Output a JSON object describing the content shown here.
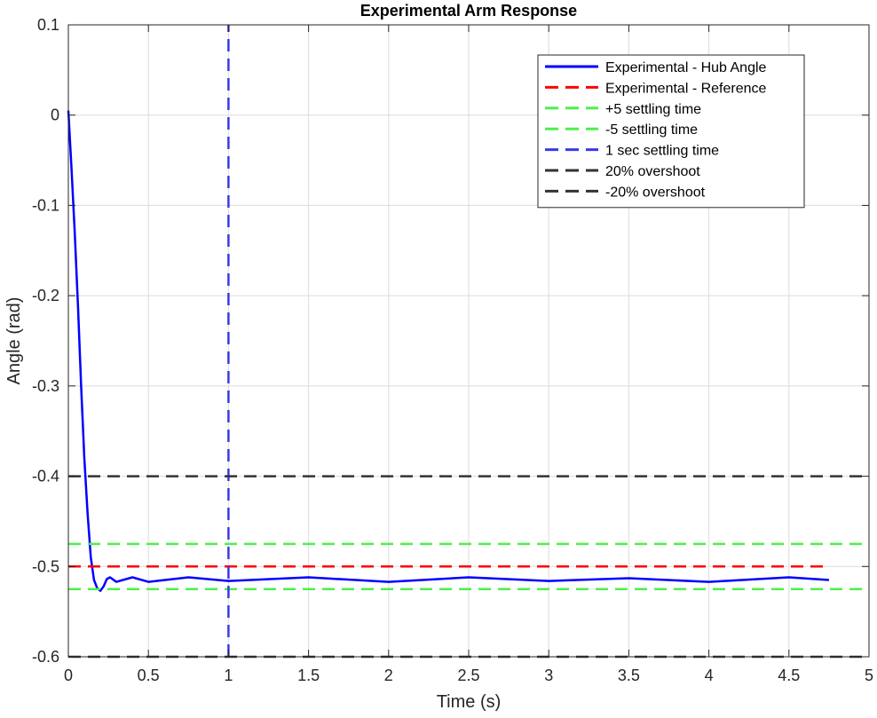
{
  "chart_data": {
    "type": "line",
    "title": "Experimental Arm Response",
    "xlabel": "Time (s)",
    "ylabel": "Angle (rad)",
    "xlim": [
      0,
      5
    ],
    "ylim": [
      -0.6,
      0.1
    ],
    "xticks": [
      0,
      0.5,
      1,
      1.5,
      2,
      2.5,
      3,
      3.5,
      4,
      4.5,
      5
    ],
    "xtick_labels": [
      "0",
      "0.5",
      "1",
      "1.5",
      "2",
      "2.5",
      "3",
      "3.5",
      "4",
      "4.5",
      "5"
    ],
    "yticks": [
      -0.6,
      -0.5,
      -0.4,
      -0.3,
      -0.2,
      -0.1,
      0,
      0.1
    ],
    "ytick_labels": [
      "-0.6",
      "-0.5",
      "-0.4",
      "-0.3",
      "-0.2",
      "-0.1",
      "0",
      "0.1"
    ],
    "grid": true,
    "legend_position": "top-right",
    "series": [
      {
        "name": "Experimental - Hub Angle",
        "color": "#0000ff",
        "style": "solid",
        "x": [
          0,
          0.02,
          0.04,
          0.06,
          0.08,
          0.1,
          0.12,
          0.14,
          0.16,
          0.18,
          0.2,
          0.22,
          0.24,
          0.26,
          0.3,
          0.4,
          0.5,
          0.75,
          1,
          1.5,
          2,
          2.5,
          3,
          3.5,
          4,
          4.5,
          4.75
        ],
        "y": [
          0.005,
          -0.06,
          -0.13,
          -0.21,
          -0.3,
          -0.38,
          -0.44,
          -0.49,
          -0.515,
          -0.524,
          -0.527,
          -0.522,
          -0.514,
          -0.512,
          -0.517,
          -0.512,
          -0.517,
          -0.512,
          -0.516,
          -0.512,
          -0.517,
          -0.512,
          -0.516,
          -0.513,
          -0.517,
          -0.512,
          -0.515
        ]
      },
      {
        "name": "Experimental - Reference",
        "color": "#ff0000",
        "style": "dashed",
        "x": [
          0,
          4.75
        ],
        "y": [
          -0.5,
          -0.5
        ]
      },
      {
        "name": "+5 settling time",
        "color": "#4cf04c",
        "style": "dashed",
        "x": [
          0,
          5
        ],
        "y": [
          -0.475,
          -0.475
        ]
      },
      {
        "name": "-5 settling time",
        "color": "#4cf04c",
        "style": "dashed",
        "x": [
          0,
          5
        ],
        "y": [
          -0.525,
          -0.525
        ]
      },
      {
        "name": "1 sec settling time",
        "color": "#3a3ae6",
        "style": "dashed",
        "orientation": "vertical",
        "x": [
          1,
          1
        ],
        "y": [
          -0.6,
          0.1
        ]
      },
      {
        "name": "20% overshoot",
        "color": "#333333",
        "style": "dashed",
        "x": [
          0,
          5
        ],
        "y": [
          -0.4,
          -0.4
        ]
      },
      {
        "name": "-20% overshoot",
        "color": "#333333",
        "style": "dashed",
        "x": [
          0,
          5
        ],
        "y": [
          -0.6,
          -0.6
        ]
      }
    ]
  }
}
